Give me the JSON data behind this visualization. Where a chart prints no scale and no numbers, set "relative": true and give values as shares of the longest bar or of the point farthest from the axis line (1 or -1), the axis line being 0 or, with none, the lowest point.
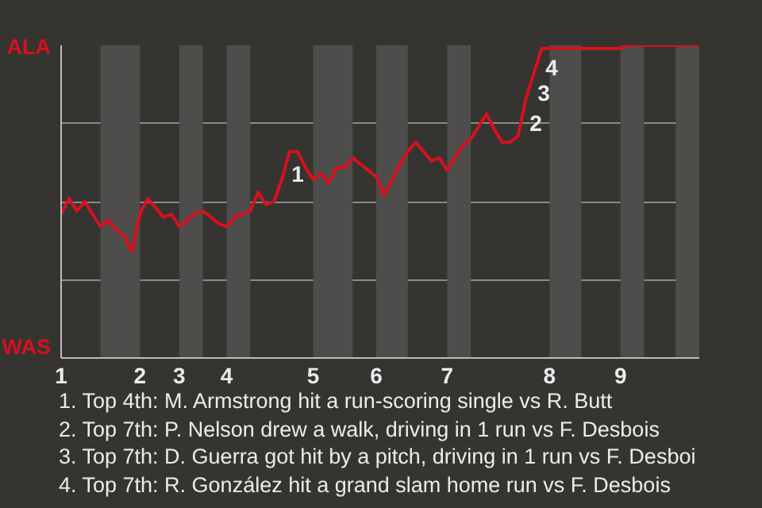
{
  "chart_data": {
    "type": "line",
    "relative": true,
    "categories": [
      "1",
      null,
      null,
      null,
      null,
      null,
      null,
      null,
      null,
      null,
      "2",
      null,
      null,
      null,
      null,
      "3",
      null,
      null,
      null,
      null,
      null,
      "4",
      null,
      null,
      null,
      null,
      null,
      null,
      null,
      null,
      null,
      null,
      "5",
      null,
      null,
      null,
      null,
      null,
      null,
      null,
      "6",
      null,
      null,
      null,
      null,
      null,
      null,
      null,
      null,
      "7",
      null,
      null,
      null,
      null,
      null,
      null,
      null,
      null,
      null,
      null,
      null,
      null,
      "8",
      null,
      null,
      null,
      null,
      null,
      null,
      null,
      null,
      "9",
      null,
      null,
      null,
      null,
      null,
      null,
      null,
      null,
      null,
      null
    ],
    "series": [
      {
        "color": "#d8101e",
        "values": [
          0.46,
          0.51,
          0.47,
          0.5,
          0.46,
          0.42,
          0.44,
          0.41,
          0.39,
          0.34,
          0.46,
          0.51,
          0.48,
          0.45,
          0.46,
          0.42,
          0.44,
          0.46,
          0.47,
          0.45,
          0.43,
          0.42,
          0.45,
          0.46,
          0.47,
          0.53,
          0.49,
          0.5,
          0.57,
          0.66,
          0.66,
          0.61,
          0.57,
          0.59,
          0.56,
          0.61,
          0.61,
          0.64,
          0.62,
          0.6,
          0.58,
          0.52,
          0.57,
          0.62,
          0.66,
          0.69,
          0.66,
          0.63,
          0.64,
          0.6,
          0.64,
          0.68,
          0.7,
          0.74,
          0.78,
          0.73,
          0.69,
          0.69,
          0.71,
          0.83,
          0.91,
          0.99,
          0.99,
          0.99,
          0.99,
          0.99,
          0.99,
          0.99,
          0.99,
          0.99,
          0.99,
          0.99,
          1,
          1,
          1,
          1,
          1,
          1,
          1,
          1,
          1,
          1
        ]
      }
    ],
    "grid": "y",
    "marker": "none",
    "line_style": "solid",
    "annotations": [
      "ALA",
      "WAS",
      "1",
      "2",
      "3",
      "4",
      "1. Top 4th: M. Armstrong hit a run-scoring single vs R. Butt",
      "2. Top 7th: P. Nelson drew a walk, driving in 1 run vs F. Desbois",
      "3. Top 7th: D. Guerra got hit by a pitch, driving in 1 run vs F. Desboi",
      "4. Top 7th: R. González hit a grand slam home run vs F. Desbois"
    ]
  }
}
